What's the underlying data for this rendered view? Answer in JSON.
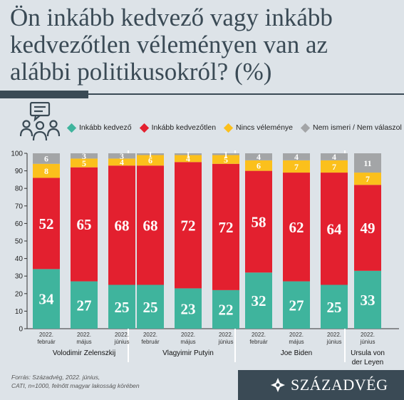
{
  "title": "Ön inkább kedvező vagy inkább kedvezőtlen véleményen van az alábbi politikusokról? (%)",
  "legend": [
    {
      "name": "Inkább kedvező",
      "color": "#3fb49d"
    },
    {
      "name": "Inkább kedvezőtlen",
      "color": "#e3202f"
    },
    {
      "name": "Nincs véleménye",
      "color": "#fbc01c"
    },
    {
      "name": "Nem ismeri / Nem válaszol",
      "color": "#a3a5a7"
    }
  ],
  "footer": {
    "source_line1": "Forrás: Századvég, 2022. június,",
    "source_line2": "CATI, n=1000, felnőtt magyar lakosság körében",
    "brand": "SZÁZADVÉG"
  },
  "chart_data": {
    "type": "bar",
    "stacked": true,
    "ylim": [
      0,
      100
    ],
    "yticks": [
      0,
      10,
      20,
      30,
      40,
      50,
      60,
      70,
      80,
      90,
      100
    ],
    "grid": false,
    "legend_position": "top",
    "series_names": [
      "Inkább kedvező",
      "Inkább kedvezőtlen",
      "Nincs véleménye",
      "Nem ismeri / Nem válaszol"
    ],
    "series_colors": [
      "#3fb49d",
      "#e3202f",
      "#fbc01c",
      "#a3a5a7"
    ],
    "groups": [
      {
        "name": "Volodimir Zelenszkij",
        "bars": [
          {
            "year": "2022.",
            "month": "február",
            "values": [
              34,
              52,
              8,
              6
            ]
          },
          {
            "year": "2022.",
            "month": "május",
            "values": [
              27,
              65,
              5,
              3
            ]
          },
          {
            "year": "2022.",
            "month": "június",
            "values": [
              25,
              68,
              4,
              3
            ]
          }
        ]
      },
      {
        "name": "Vlagyimir Putyin",
        "bars": [
          {
            "year": "2022.",
            "month": "február",
            "values": [
              25,
              68,
              6,
              1
            ]
          },
          {
            "year": "2022.",
            "month": "május",
            "values": [
              23,
              72,
              4,
              1
            ]
          },
          {
            "year": "2022.",
            "month": "június",
            "values": [
              22,
              72,
              5,
              1
            ]
          }
        ]
      },
      {
        "name": "Joe Biden",
        "bars": [
          {
            "year": "2022.",
            "month": "február",
            "values": [
              32,
              58,
              6,
              4
            ]
          },
          {
            "year": "2022.",
            "month": "május",
            "values": [
              27,
              62,
              7,
              4
            ]
          },
          {
            "year": "2022.",
            "month": "június",
            "values": [
              25,
              64,
              7,
              4
            ]
          }
        ]
      },
      {
        "name": "Ursula von der Leyen",
        "bars": [
          {
            "year": "2022.",
            "month": "június",
            "values": [
              33,
              49,
              7,
              11
            ]
          }
        ]
      }
    ]
  }
}
